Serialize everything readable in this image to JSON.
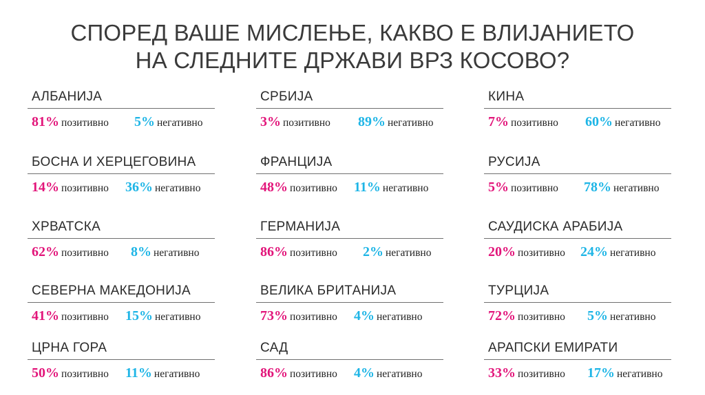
{
  "title": {
    "line1": "СПОРЕД ВАШЕ МИСЛЕЊЕ, КАКВО Е ВЛИЈАНИЕТО",
    "line2": "НА СЛЕДНИТЕ ДРЖАВИ ВРЗ КОСОВО?"
  },
  "colors": {
    "positive": "#e2157a",
    "negative": "#1eb5e6"
  },
  "labels": {
    "positive": "позитивно",
    "negative": "негативно"
  },
  "countries": [
    {
      "name": "АЛБАНИЈА",
      "positive": "81%",
      "negative": "5%"
    },
    {
      "name": "СРБИЈА",
      "positive": "3%",
      "negative": "89%"
    },
    {
      "name": "КИНА",
      "positive": "7%",
      "negative": "60%"
    },
    {
      "name": "БОСНА И ХЕРЦЕГОВИНА",
      "positive": "14%",
      "negative": "36%"
    },
    {
      "name": "ФРАНЦИЈА",
      "positive": "48%",
      "negative": "11%"
    },
    {
      "name": "РУСИЈА",
      "positive": "5%",
      "negative": "78%"
    },
    {
      "name": "ХРВАТСКА",
      "positive": "62%",
      "negative": "8%"
    },
    {
      "name": "ГЕРМАНИЈА",
      "positive": "86%",
      "negative": "2%"
    },
    {
      "name": "САУДИСКА АРАБИЈА",
      "positive": "20%",
      "negative": "24%"
    },
    {
      "name": "СЕВЕРНА МАКЕДОНИЈА",
      "positive": "41%",
      "negative": "15%"
    },
    {
      "name": "ВЕЛИКА БРИТАНИЈА",
      "positive": "73%",
      "negative": "4%"
    },
    {
      "name": "ТУРЦИЈА",
      "positive": "72%",
      "negative": "5%"
    },
    {
      "name": "ЦРНА ГОРА",
      "positive": "50%",
      "negative": "11%"
    },
    {
      "name": "САД",
      "positive": "86%",
      "negative": "4%"
    },
    {
      "name": "АРАПСКИ ЕМИРАТИ",
      "positive": "33%",
      "negative": "17%"
    }
  ]
}
